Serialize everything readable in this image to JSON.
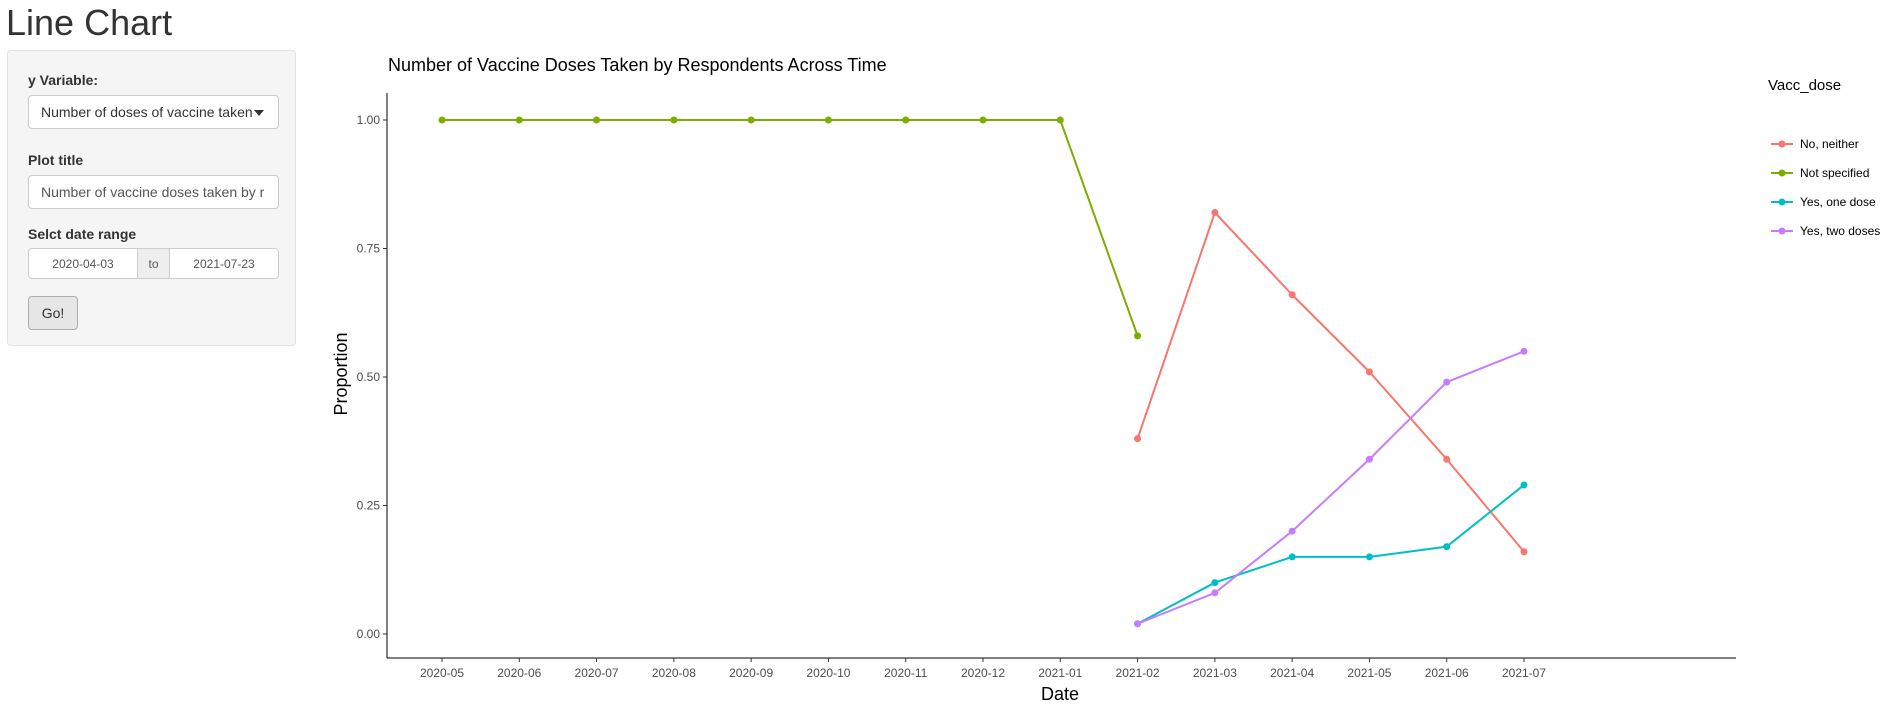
{
  "page": {
    "title": "Line Chart"
  },
  "sidebar": {
    "y_variable_label": "y Variable:",
    "y_variable_value": "Number of doses of vaccine taken",
    "plot_title_label": "Plot title",
    "plot_title_value": "Number of vaccine doses taken by r",
    "date_range_label": "Selct date range",
    "date_start": "2020-04-03",
    "date_sep": "to",
    "date_end": "2021-07-23",
    "go_label": "Go!"
  },
  "chart_data": {
    "type": "line",
    "title": "Number of Vaccine Doses Taken by Respondents Across Time",
    "xlabel": "Date",
    "ylabel": "Proportion",
    "legend_title": "Vacc_dose",
    "legend_position": "right",
    "grid": false,
    "ylim": [
      0,
      1
    ],
    "y_ticks": [
      "0.00",
      "0.25",
      "0.50",
      "0.75",
      "1.00"
    ],
    "categories": [
      "2020-05",
      "2020-06",
      "2020-07",
      "2020-08",
      "2020-09",
      "2020-10",
      "2020-11",
      "2020-12",
      "2021-01",
      "2021-02",
      "2021-03",
      "2021-04",
      "2021-05",
      "2021-06",
      "2021-07"
    ],
    "series": [
      {
        "name": "No, neither",
        "color": "#F8766D",
        "values": [
          null,
          null,
          null,
          null,
          null,
          null,
          null,
          null,
          null,
          0.38,
          0.82,
          0.66,
          0.51,
          0.34,
          0.16
        ]
      },
      {
        "name": "Not specified",
        "color": "#7CAE00",
        "values": [
          1.0,
          1.0,
          1.0,
          1.0,
          1.0,
          1.0,
          1.0,
          1.0,
          1.0,
          0.58,
          null,
          null,
          null,
          null,
          null
        ]
      },
      {
        "name": "Yes, one dose",
        "color": "#00BFC4",
        "values": [
          null,
          null,
          null,
          null,
          null,
          null,
          null,
          null,
          null,
          0.02,
          0.1,
          0.15,
          0.15,
          0.17,
          0.29
        ]
      },
      {
        "name": "Yes, two doses",
        "color": "#C77CFF",
        "values": [
          null,
          null,
          null,
          null,
          null,
          null,
          null,
          null,
          null,
          0.02,
          0.08,
          0.2,
          0.34,
          0.49,
          0.55
        ]
      }
    ]
  }
}
